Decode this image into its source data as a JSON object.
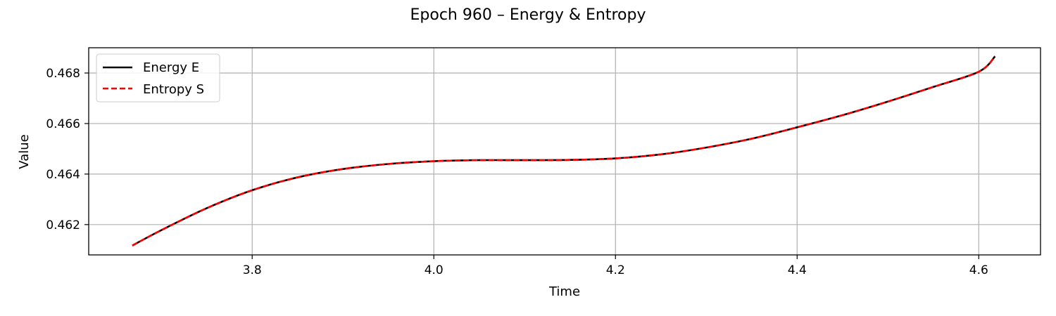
{
  "chart_data": {
    "type": "line",
    "title": "Epoch 960 – Energy & Entropy",
    "xlabel": "Time",
    "ylabel": "Value",
    "xlim": [
      3.62,
      4.668
    ],
    "ylim": [
      0.4608,
      0.469
    ],
    "xticks": [
      3.8,
      4.0,
      4.2,
      4.4,
      4.6
    ],
    "xtick_labels": [
      "3.8",
      "4.0",
      "4.2",
      "4.4",
      "4.6"
    ],
    "yticks": [
      0.462,
      0.464,
      0.466,
      0.468
    ],
    "ytick_labels": [
      "0.462",
      "0.464",
      "0.466",
      "0.468"
    ],
    "grid": true,
    "legend": "top-left",
    "series": [
      {
        "name": "Energy E",
        "color": "#000000",
        "style": "solid",
        "x": [
          3.668,
          3.7,
          3.75,
          3.8,
          3.85,
          3.9,
          3.95,
          4.0,
          4.05,
          4.1,
          4.15,
          4.2,
          4.25,
          4.3,
          4.35,
          4.4,
          4.45,
          4.5,
          4.55,
          4.6,
          4.618
        ],
        "y": [
          0.46117,
          0.46178,
          0.46265,
          0.46336,
          0.46387,
          0.4642,
          0.4644,
          0.46451,
          0.46455,
          0.46455,
          0.46456,
          0.46462,
          0.46478,
          0.46505,
          0.4654,
          0.46585,
          0.46633,
          0.46687,
          0.46745,
          0.46805,
          0.46866
        ]
      },
      {
        "name": "Entropy S",
        "color": "#ff0000",
        "style": "dashed",
        "x": [
          3.668,
          3.7,
          3.75,
          3.8,
          3.85,
          3.9,
          3.95,
          4.0,
          4.05,
          4.1,
          4.15,
          4.2,
          4.25,
          4.3,
          4.35,
          4.4,
          4.45,
          4.5,
          4.55,
          4.6,
          4.618
        ],
        "y": [
          0.46117,
          0.46178,
          0.46265,
          0.46336,
          0.46387,
          0.4642,
          0.4644,
          0.46451,
          0.46455,
          0.46455,
          0.46456,
          0.46462,
          0.46478,
          0.46505,
          0.4654,
          0.46585,
          0.46633,
          0.46687,
          0.46745,
          0.46805,
          0.46866
        ]
      }
    ]
  }
}
